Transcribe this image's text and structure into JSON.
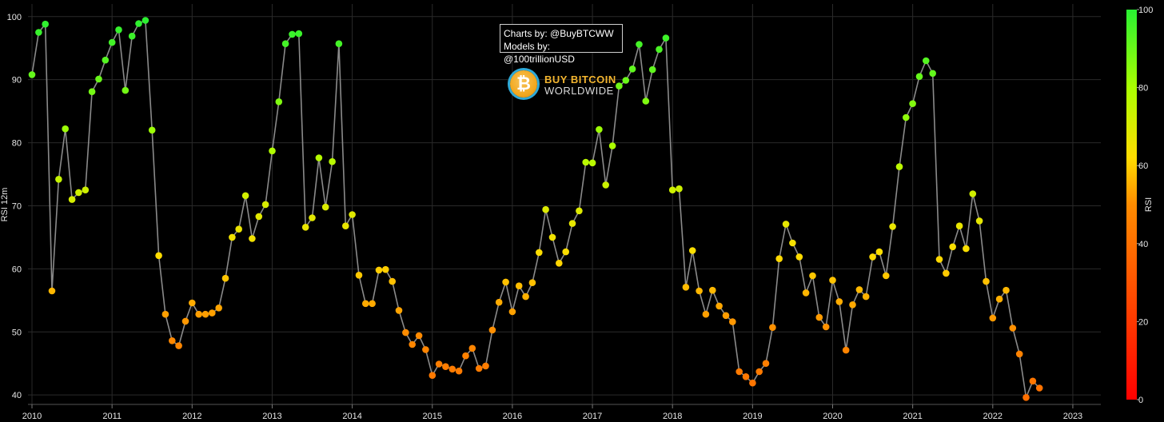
{
  "header": {
    "credits_line1": "Charts by: @BuyBTCWW",
    "credits_line2": "Models by: @100trillionUSD",
    "logo_line1": "BUY BITCOIN",
    "logo_line2": "WORLDWIDE",
    "logo_symbol": "₿"
  },
  "chart_data": {
    "type": "scatter",
    "title": "",
    "xlabel": "",
    "ylabel": "RSI 12m",
    "xlim": [
      2009.95,
      2023.35
    ],
    "ylim": [
      38.5,
      102
    ],
    "x_ticks": [
      2010,
      2011,
      2012,
      2013,
      2014,
      2015,
      2016,
      2017,
      2018,
      2019,
      2020,
      2021,
      2022,
      2023
    ],
    "y_ticks": [
      40,
      50,
      60,
      70,
      80,
      90,
      100
    ],
    "colorbar": {
      "label": "RSI",
      "min": 0,
      "max": 100,
      "ticks": [
        0,
        20,
        40,
        60,
        80,
        100
      ]
    },
    "line_color": "#8a8a8a",
    "series": [
      {
        "name": "RSI 12m",
        "start_year": 2010,
        "step_months": 1,
        "values": [
          90.8,
          97.5,
          98.8,
          56.5,
          74.2,
          82.2,
          71.0,
          72.1,
          72.5,
          88.1,
          90.1,
          93.1,
          95.9,
          97.9,
          88.3,
          96.9,
          98.9,
          99.4,
          82.0,
          62.1,
          52.8,
          48.6,
          47.8,
          51.7,
          54.6,
          52.8,
          52.8,
          53.0,
          53.8,
          58.5,
          65.0,
          66.3,
          71.6,
          64.8,
          68.3,
          70.2,
          78.7,
          86.5,
          95.7,
          97.2,
          97.3,
          66.6,
          68.1,
          77.6,
          69.8,
          77.0,
          95.7,
          66.8,
          68.6,
          59.0,
          54.5,
          54.5,
          59.8,
          59.9,
          58.0,
          53.4,
          49.9,
          48.0,
          49.4,
          47.2,
          43.1,
          44.9,
          44.5,
          44.1,
          43.8,
          46.2,
          47.4,
          44.2,
          44.6,
          50.3,
          54.7,
          57.9,
          53.2,
          57.3,
          55.6,
          57.8,
          62.6,
          69.4,
          65.0,
          60.9,
          62.7,
          67.2,
          69.2,
          76.9,
          76.8,
          82.1,
          73.3,
          79.5,
          89.0,
          89.9,
          91.7,
          95.6,
          86.6,
          91.6,
          94.8,
          96.6,
          72.5,
          72.7,
          57.1,
          62.9,
          56.5,
          52.8,
          56.6,
          54.1,
          52.6,
          51.6,
          43.7,
          42.9,
          41.9,
          43.7,
          45.0,
          50.7,
          61.6,
          67.1,
          64.1,
          61.9,
          56.2,
          58.9,
          52.3,
          50.8,
          58.2,
          54.8,
          47.1,
          54.3,
          56.7,
          55.6,
          61.9,
          62.7,
          58.9,
          66.7,
          76.2,
          84.0,
          86.2,
          90.5,
          93.0,
          91.0,
          61.5,
          59.3,
          63.5,
          66.8,
          63.2,
          71.9,
          67.6,
          58.0,
          52.2,
          55.2,
          56.6,
          50.6,
          46.5,
          39.6,
          42.2,
          41.1
        ]
      }
    ]
  }
}
